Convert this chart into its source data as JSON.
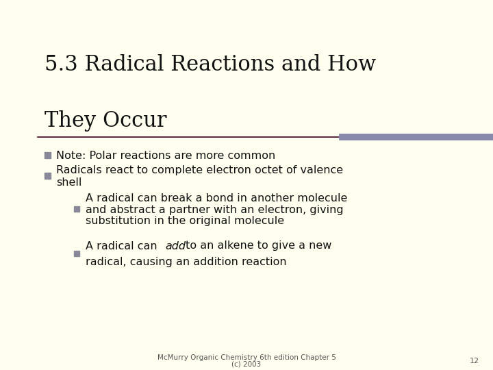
{
  "title_line1": "5.3 Radical Reactions and How",
  "title_line2": "They Occur",
  "bg_color": "#FFFFF0",
  "left_bar_color": "#C8C898",
  "left_bar_dark": "#3D0020",
  "title_color": "#111111",
  "sep_left_color": "#3D0020",
  "sep_right_color": "#8888AA",
  "bullet_color": "#888899",
  "sub_bullet_color": "#888899",
  "text_color": "#111111",
  "footer_color": "#555555",
  "bullet1": "Note: Polar reactions are more common",
  "bullet2_line1": "Radicals react to complete electron octet of valence",
  "bullet2_line2": "shell",
  "sub1_line1": "A radical can break a bond in another molecule",
  "sub1_line2": "and abstract a partner with an electron, giving",
  "sub1_line3": "substitution in the original molecule",
  "sub2_pre": "A radical can ",
  "sub2_italic": "add",
  "sub2_post": " to an alkene to give a new",
  "sub2_line2": "radical, causing an addition reaction",
  "footer_line1": "McMurry Organic Chemistry 6th edition Chapter 5",
  "footer_line2": "(c) 2003",
  "page_number": "12",
  "title_fontsize": 22,
  "body_fontsize": 11.5,
  "footer_fontsize": 7.5
}
